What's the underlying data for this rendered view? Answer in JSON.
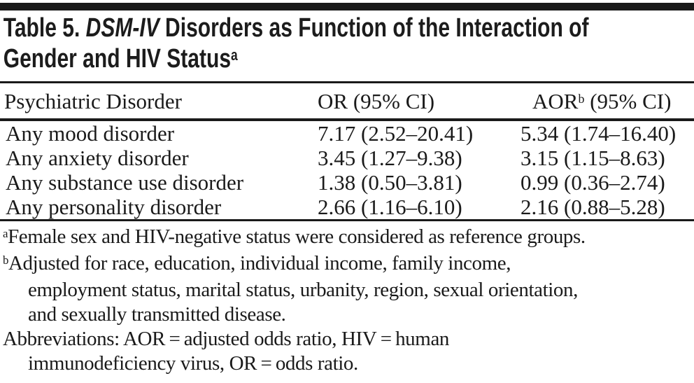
{
  "title": {
    "line1_prefix": "Table 5. ",
    "line1_italic": "DSM-IV",
    "line1_rest": " Disorders as Function of the Interaction of",
    "line2_text": "Gender and HIV Status",
    "line2_sup": "a"
  },
  "table": {
    "header": {
      "col1": "Psychiatric Disorder",
      "col2": "OR (95% CI)",
      "col3_label": "AOR",
      "col3_sup": "b",
      "col3_rest": " (95% CI)"
    },
    "rows": [
      {
        "disorder": "Any mood disorder",
        "or": "7.17 (2.52–20.41)",
        "aor": "5.34 (1.74–16.40)"
      },
      {
        "disorder": "Any anxiety disorder",
        "or": "3.45 (1.27–9.38)",
        "aor": "3.15 (1.15–8.63)"
      },
      {
        "disorder": "Any substance use disorder",
        "or": "1.38 (0.50–3.81)",
        "aor": "0.99 (0.36–2.74)"
      },
      {
        "disorder": "Any personality disorder",
        "or": "2.66 (1.16–6.10)",
        "aor": "2.16 (0.88–5.28)"
      }
    ]
  },
  "footnotes": {
    "lines": [
      {
        "sup": "a",
        "text": "Female sex and HIV-negative status were considered as reference groups."
      },
      {
        "sup": "b",
        "text": "Adjusted for race, education, individual income, family income,"
      },
      {
        "sup": "",
        "text": "employment status, marital status, urbanity, region, sexual orientation,"
      },
      {
        "sup": "",
        "text": "and sexually transmitted disease."
      },
      {
        "sup": "",
        "text": "Abbreviations: AOR = adjusted odds ratio, HIV = human"
      },
      {
        "sup": "",
        "text": "immunodeficiency virus, OR = odds ratio."
      }
    ]
  },
  "colors": {
    "background": "#ffffff",
    "text": "#1a1a1a",
    "rule": "#1a1a1a"
  }
}
